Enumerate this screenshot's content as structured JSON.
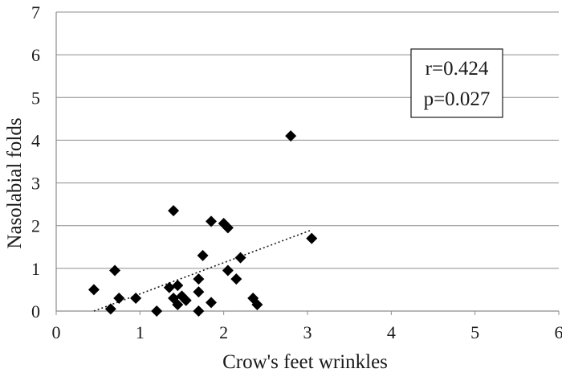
{
  "chart_data": {
    "type": "scatter",
    "title": "",
    "xlabel": "Crow's feet wrinkles",
    "ylabel": "Nasolabial folds",
    "xlim": [
      0,
      6
    ],
    "ylim": [
      0,
      7
    ],
    "x_ticks": [
      "0",
      "1",
      "2",
      "3",
      "4",
      "5",
      "6"
    ],
    "y_ticks": [
      "0",
      "1",
      "2",
      "3",
      "4",
      "5",
      "6",
      "7"
    ],
    "grid": "horizontal",
    "marker": "diamond",
    "marker_color": "#000000",
    "points": [
      {
        "x": 0.45,
        "y": 0.5
      },
      {
        "x": 0.65,
        "y": 0.05
      },
      {
        "x": 0.7,
        "y": 0.95
      },
      {
        "x": 0.75,
        "y": 0.3
      },
      {
        "x": 0.95,
        "y": 0.3
      },
      {
        "x": 1.2,
        "y": 0.0
      },
      {
        "x": 1.35,
        "y": 0.55
      },
      {
        "x": 1.4,
        "y": 2.35
      },
      {
        "x": 1.4,
        "y": 0.3
      },
      {
        "x": 1.45,
        "y": 0.15
      },
      {
        "x": 1.45,
        "y": 0.6
      },
      {
        "x": 1.5,
        "y": 0.35
      },
      {
        "x": 1.55,
        "y": 0.25
      },
      {
        "x": 1.7,
        "y": 0.75
      },
      {
        "x": 1.7,
        "y": 0.45
      },
      {
        "x": 1.7,
        "y": 0.0
      },
      {
        "x": 1.75,
        "y": 1.3
      },
      {
        "x": 1.85,
        "y": 2.1
      },
      {
        "x": 1.85,
        "y": 0.2
      },
      {
        "x": 2.0,
        "y": 2.05
      },
      {
        "x": 2.05,
        "y": 1.95
      },
      {
        "x": 2.05,
        "y": 0.95
      },
      {
        "x": 2.15,
        "y": 0.75
      },
      {
        "x": 2.2,
        "y": 1.25
      },
      {
        "x": 2.35,
        "y": 0.3
      },
      {
        "x": 2.4,
        "y": 0.15
      },
      {
        "x": 2.8,
        "y": 4.1
      },
      {
        "x": 3.05,
        "y": 1.7
      }
    ],
    "trendline": {
      "style": "dotted",
      "start": {
        "x": 0.45,
        "y": 0.0
      },
      "end": {
        "x": 3.05,
        "y": 1.9
      }
    },
    "annotation": {
      "position": "top-right",
      "lines": [
        "r=0.424",
        "p=0.027"
      ]
    }
  }
}
